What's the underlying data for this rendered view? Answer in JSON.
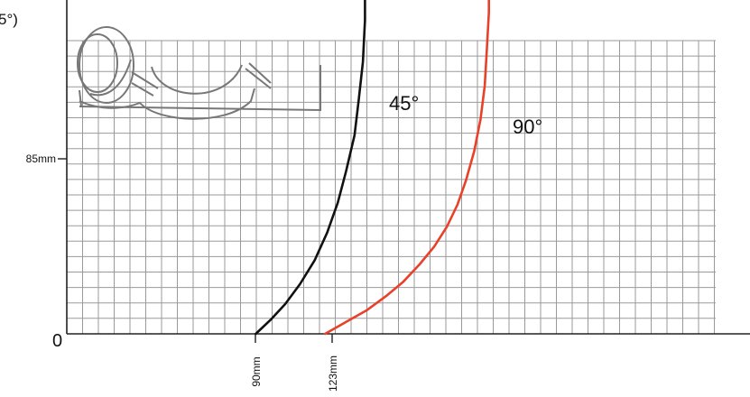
{
  "chart_data": {
    "type": "line",
    "title_fragment": "5°)",
    "origin_label": "0",
    "y_tick_label": "85mm",
    "x_tick_labels": [
      "90mm",
      "123mm"
    ],
    "grid": true,
    "series": [
      {
        "name": "45°",
        "color": "#111111",
        "points": [
          [
            90,
            0
          ],
          [
            97,
            7
          ],
          [
            104,
            15
          ],
          [
            111,
            25
          ],
          [
            118,
            37
          ],
          [
            124,
            51
          ],
          [
            129,
            66
          ],
          [
            133,
            82
          ],
          [
            137,
            100
          ],
          [
            139,
            118
          ],
          [
            141,
            137
          ],
          [
            142,
            158
          ],
          [
            142,
            180
          ]
        ]
      },
      {
        "name": "90°",
        "color": "#e8412a",
        "points": [
          [
            123,
            0
          ],
          [
            133,
            6
          ],
          [
            143,
            12
          ],
          [
            152,
            19
          ],
          [
            160,
            26
          ],
          [
            168,
            35
          ],
          [
            175,
            44
          ],
          [
            181,
            54
          ],
          [
            186,
            65
          ],
          [
            190,
            77
          ],
          [
            194,
            92
          ],
          [
            197,
            108
          ],
          [
            199,
            125
          ],
          [
            200,
            143
          ],
          [
            201,
            162
          ],
          [
            201,
            180
          ]
        ]
      }
    ],
    "watermark_icon": "circular-saw-blade-illustration"
  }
}
